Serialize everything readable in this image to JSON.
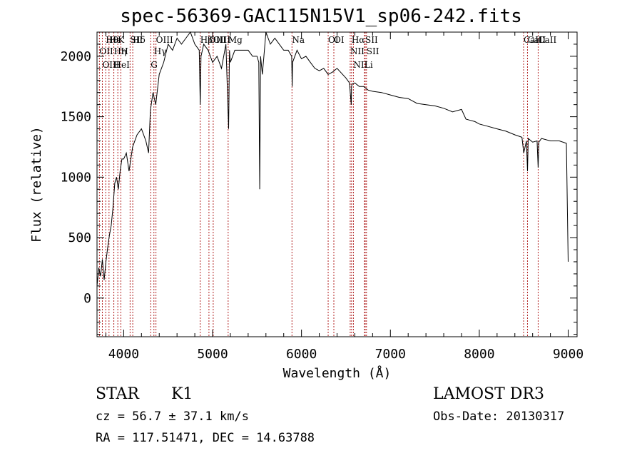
{
  "chart_data": {
    "type": "line",
    "title": "spec-56369-GAC115N15V1_sp06-242.fits",
    "xlabel": "Wavelength (Å)",
    "ylabel": "Flux (relative)",
    "xlim": [
      3700,
      9100
    ],
    "ylim": [
      -320,
      2200
    ],
    "x_ticks": [
      4000,
      5000,
      6000,
      7000,
      8000,
      9000
    ],
    "y_ticks": [
      0,
      500,
      1000,
      1500,
      2000
    ],
    "x_tick_labels": [
      "4000",
      "5000",
      "6000",
      "7000",
      "8000",
      "9000"
    ],
    "y_tick_labels": [
      "0",
      "500",
      "1000",
      "1500",
      "2000"
    ],
    "series": [
      {
        "name": "spectrum",
        "x": [
          3700,
          3720,
          3740,
          3760,
          3780,
          3800,
          3820,
          3840,
          3860,
          3880,
          3900,
          3920,
          3940,
          3960,
          3980,
          4000,
          4030,
          4060,
          4100,
          4150,
          4200,
          4250,
          4280,
          4300,
          4330,
          4360,
          4400,
          4450,
          4500,
          4550,
          4600,
          4650,
          4700,
          4750,
          4800,
          4850,
          4861,
          4870,
          4900,
          4950,
          5000,
          5050,
          5100,
          5150,
          5180,
          5190,
          5200,
          5250,
          5300,
          5350,
          5400,
          5450,
          5500,
          5520,
          5530,
          5540,
          5560,
          5600,
          5650,
          5700,
          5750,
          5800,
          5850,
          5890,
          5895,
          5900,
          5950,
          6000,
          6050,
          6100,
          6150,
          6200,
          6250,
          6300,
          6350,
          6400,
          6450,
          6500,
          6540,
          6560,
          6563,
          6570,
          6600,
          6650,
          6700,
          6750,
          6800,
          6900,
          7000,
          7100,
          7200,
          7300,
          7400,
          7500,
          7600,
          7700,
          7800,
          7850,
          7900,
          7950,
          8000,
          8100,
          8200,
          8300,
          8400,
          8480,
          8500,
          8530,
          8542,
          8550,
          8600,
          8650,
          8662,
          8670,
          8700,
          8800,
          8900,
          8980,
          9000
        ],
        "values": [
          100,
          250,
          180,
          320,
          150,
          300,
          420,
          520,
          600,
          750,
          950,
          1000,
          900,
          1050,
          1150,
          1150,
          1200,
          1050,
          1250,
          1350,
          1400,
          1300,
          1200,
          1550,
          1700,
          1600,
          1850,
          1950,
          2100,
          2050,
          2150,
          2100,
          2150,
          2200,
          2100,
          2050,
          1600,
          2000,
          2100,
          2050,
          1950,
          2000,
          1900,
          2100,
          1400,
          2050,
          1950,
          2050,
          2050,
          2050,
          2050,
          2000,
          2000,
          1950,
          900,
          2000,
          1850,
          2200,
          2100,
          2150,
          2100,
          2050,
          2050,
          2000,
          1750,
          1950,
          2050,
          1980,
          2000,
          1950,
          1900,
          1880,
          1900,
          1850,
          1870,
          1900,
          1860,
          1820,
          1780,
          1600,
          1750,
          1770,
          1780,
          1750,
          1750,
          1720,
          1710,
          1700,
          1680,
          1660,
          1650,
          1610,
          1600,
          1590,
          1570,
          1540,
          1560,
          1480,
          1470,
          1460,
          1440,
          1420,
          1400,
          1380,
          1350,
          1330,
          1200,
          1300,
          1050,
          1320,
          1290,
          1300,
          1080,
          1290,
          1320,
          1300,
          1300,
          1280,
          300
        ]
      }
    ],
    "lines": [
      {
        "label": "Hθ",
        "x": 3798
      },
      {
        "label": "OII",
        "x": 3727
      },
      {
        "label": "OIII",
        "x": 3760
      },
      {
        "label": "Hε",
        "x": 3835
      },
      {
        "label": "Hη",
        "x": 3889
      },
      {
        "label": "HeI",
        "x": 3889
      },
      {
        "label": "K",
        "x": 3934
      },
      {
        "label": "H",
        "x": 3968
      },
      {
        "label": "SII",
        "x": 4072
      },
      {
        "label": "Hδ",
        "x": 4102
      },
      {
        "label": "OIII",
        "x": 4363
      },
      {
        "label": "Hγ",
        "x": 4340
      },
      {
        "label": "G",
        "x": 4304
      },
      {
        "label": "Hβ",
        "x": 4861
      },
      {
        "label": "OIII",
        "x": 4959
      },
      {
        "label": "OIII",
        "x": 5007
      },
      {
        "label": "Mg",
        "x": 5175
      },
      {
        "label": "Na",
        "x": 5893
      },
      {
        "label": "OI",
        "x": 6300
      },
      {
        "label": "OI",
        "x": 6364
      },
      {
        "label": "Hα",
        "x": 6563
      },
      {
        "label": "NII",
        "x": 6548
      },
      {
        "label": "NII",
        "x": 6584
      },
      {
        "label": "SII",
        "x": 6717
      },
      {
        "label": "SII",
        "x": 6731
      },
      {
        "label": "Li",
        "x": 6708
      },
      {
        "label": "CaII",
        "x": 8498
      },
      {
        "label": "CaII",
        "x": 8542
      },
      {
        "label": "CaII",
        "x": 8662
      }
    ]
  },
  "info": {
    "object_class": "STAR",
    "subclass": "K1",
    "survey": "LAMOST DR3",
    "cz": "cz = 56.7 ± 37.1 km/s",
    "obs_date": "Obs-Date: 20130317",
    "coords": "RA = 117.51471, DEC =  14.63788"
  },
  "colors": {
    "line": "#000000",
    "marker": "#b22222"
  }
}
